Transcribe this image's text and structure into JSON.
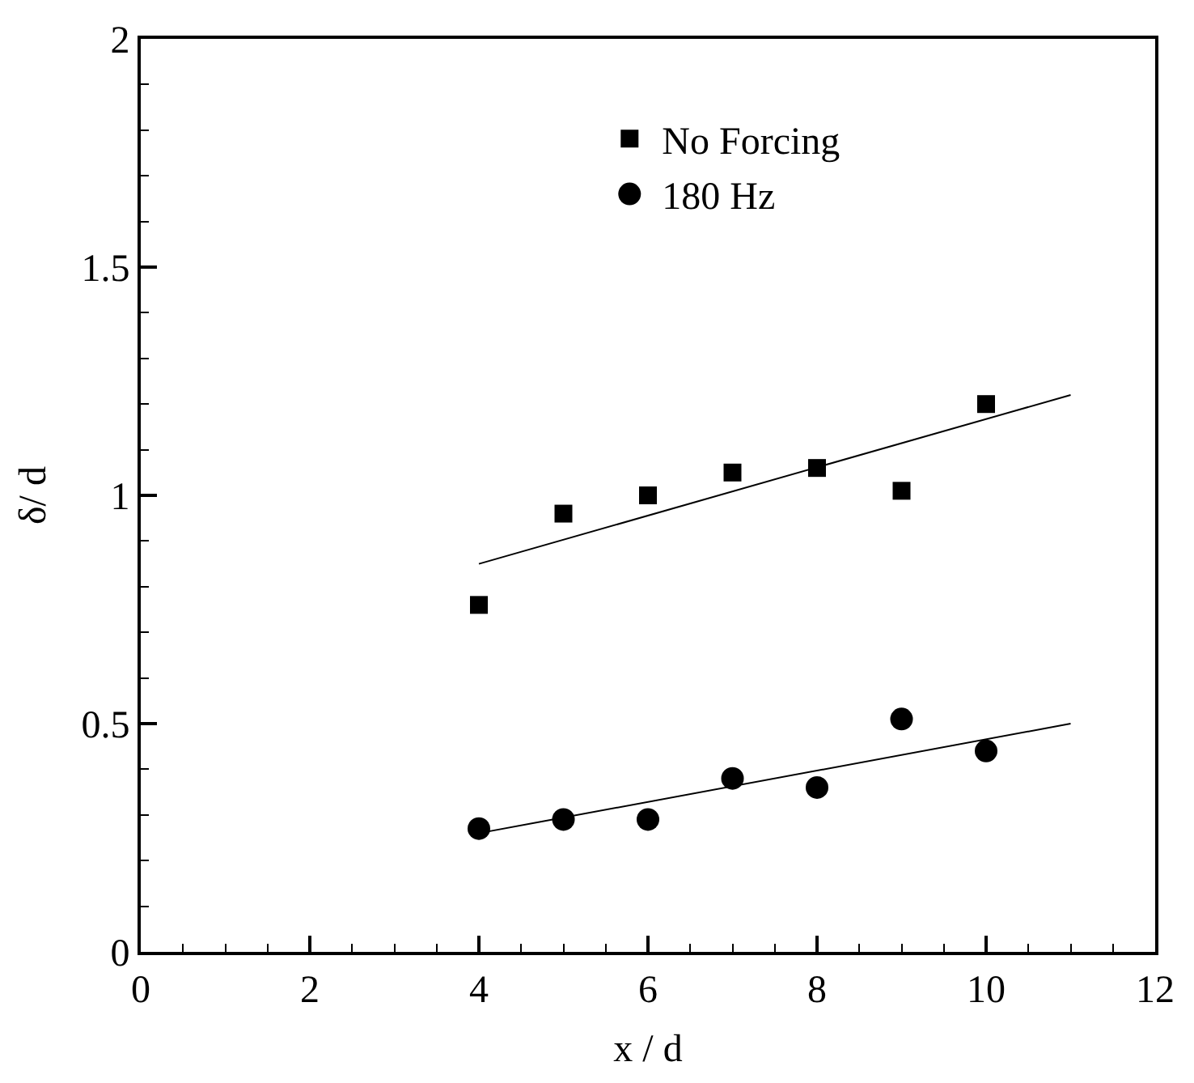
{
  "chart_data": {
    "type": "scatter",
    "xlabel": "x / d",
    "ylabel": "δ/ d",
    "xlim": [
      0,
      12
    ],
    "ylim": [
      0,
      2
    ],
    "xticks": [
      0,
      {
        "value": 0.5,
        "label": null
      },
      {
        "value": 1,
        "label": null
      },
      {
        "value": 1.5,
        "label": null
      },
      2,
      {
        "value": 2.5,
        "label": null
      },
      {
        "value": 3,
        "label": null
      },
      {
        "value": 3.5,
        "label": null
      },
      4,
      {
        "value": 4.5,
        "label": null
      },
      {
        "value": 5,
        "label": null
      },
      {
        "value": 5.5,
        "label": null
      },
      6,
      {
        "value": 6.5,
        "label": null
      },
      {
        "value": 7,
        "label": null
      },
      {
        "value": 7.5,
        "label": null
      },
      8,
      {
        "value": 8.5,
        "label": null
      },
      {
        "value": 9,
        "label": null
      },
      {
        "value": 9.5,
        "label": null
      },
      10,
      {
        "value": 10.5,
        "label": null
      },
      {
        "value": 11,
        "label": null
      },
      {
        "value": 11.5,
        "label": null
      },
      12
    ],
    "yticks": [
      0,
      {
        "value": 0.1,
        "label": null
      },
      {
        "value": 0.2,
        "label": null
      },
      {
        "value": 0.3,
        "label": null
      },
      {
        "value": 0.4,
        "label": null
      },
      0.5,
      {
        "value": 0.6,
        "label": null
      },
      {
        "value": 0.7,
        "label": null
      },
      {
        "value": 0.8,
        "label": null
      },
      {
        "value": 0.9,
        "label": null
      },
      1,
      {
        "value": 1.1,
        "label": null
      },
      {
        "value": 1.2,
        "label": null
      },
      {
        "value": 1.3,
        "label": null
      },
      {
        "value": 1.4,
        "label": null
      },
      1.5,
      {
        "value": 1.6,
        "label": null
      },
      {
        "value": 1.7,
        "label": null
      },
      {
        "value": 1.8,
        "label": null
      },
      {
        "value": 1.9,
        "label": null
      },
      2
    ],
    "grid": false,
    "legend": "top right",
    "series": [
      {
        "name": "No Forcing",
        "color": "#000000",
        "marker": "square",
        "x": [
          4,
          5,
          6,
          7,
          8,
          9,
          10
        ],
        "values": [
          0.76,
          0.96,
          1.0,
          1.05,
          1.06,
          1.01,
          1.2
        ]
      },
      {
        "name": "180 Hz",
        "color": "#000000",
        "marker": "circle",
        "x": [
          4,
          5,
          6,
          7,
          8,
          9,
          10
        ],
        "values": [
          0.27,
          0.29,
          0.29,
          0.38,
          0.36,
          0.51,
          0.44
        ]
      },
      {
        "type": "line",
        "color": "#000000",
        "x": [
          4,
          11
        ],
        "values": [
          0.85,
          1.22
        ]
      },
      {
        "type": "line",
        "color": "#000000",
        "x": [
          4,
          11
        ],
        "values": [
          0.26,
          0.5
        ]
      }
    ]
  }
}
